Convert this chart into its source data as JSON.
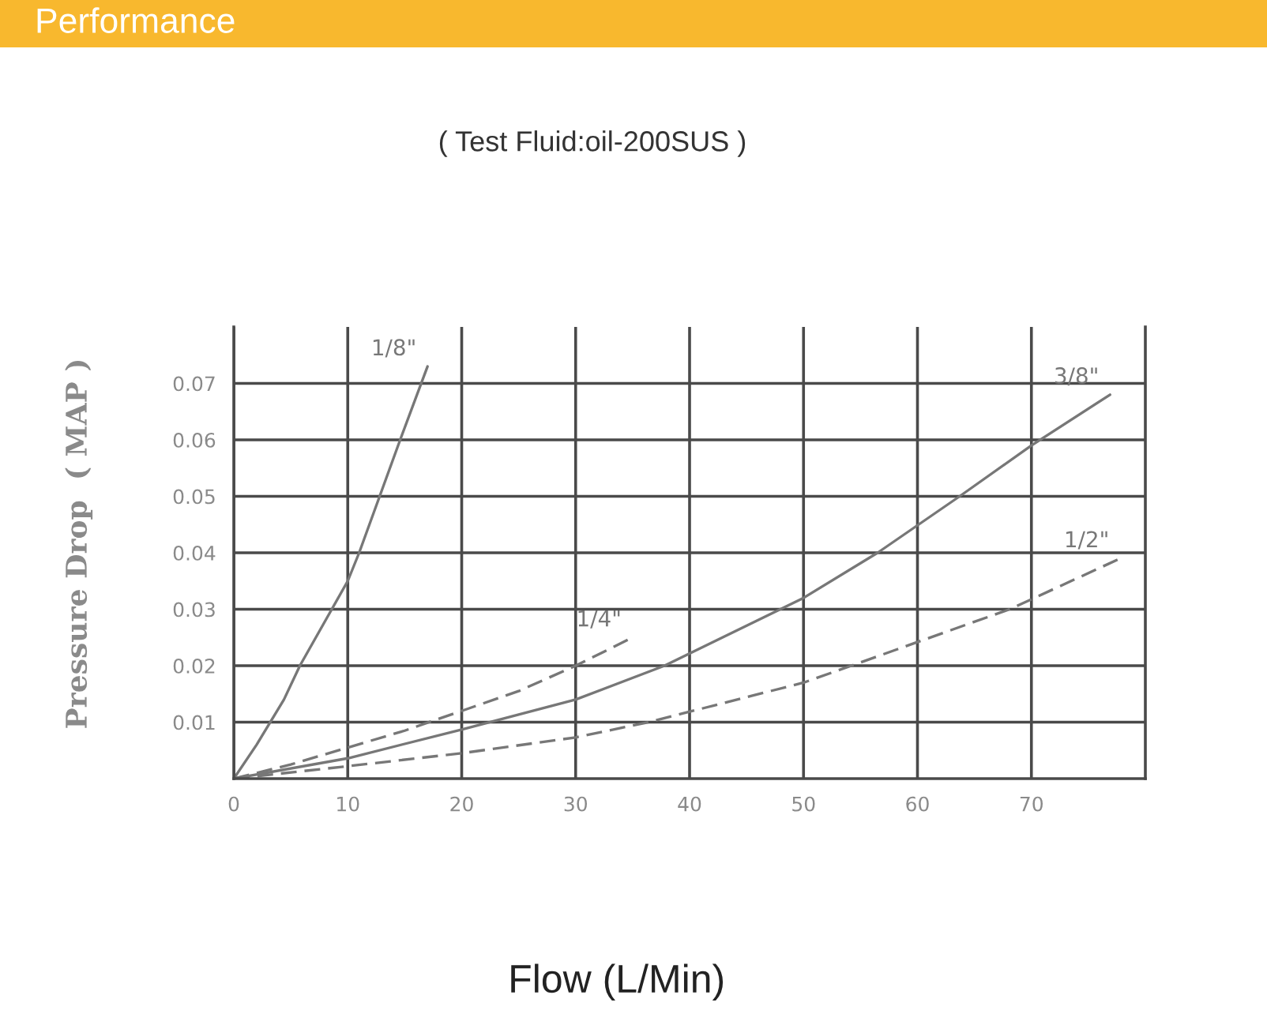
{
  "chart_data": {
    "type": "line",
    "title": "Performance",
    "subtitle": "( Test Fluid:oil-200SUS )",
    "xlabel": "Flow (L/Min)",
    "ylabel": "Pressure Drop  ( MAP )",
    "xlim": [
      0,
      80
    ],
    "ylim": [
      0,
      0.08
    ],
    "xticks": [
      0,
      10,
      20,
      30,
      40,
      50,
      60,
      70
    ],
    "yticks": [
      0.01,
      0.02,
      0.03,
      0.04,
      0.05,
      0.06,
      0.07
    ],
    "grid": true,
    "marker": "none",
    "series": [
      {
        "name": "1/8\"",
        "color": "#777777",
        "line_style": "solid",
        "x": [
          0,
          2,
          4.4,
          5.8,
          8.6,
          10,
          11,
          12.8,
          14.6,
          17
        ],
        "values": [
          0,
          0.006,
          0.014,
          0.02,
          0.03,
          0.035,
          0.04,
          0.05,
          0.06,
          0.073
        ]
      },
      {
        "name": "1/4\"",
        "color": "#777777",
        "line_style": "dashed",
        "x": [
          0,
          5,
          10,
          15,
          20,
          25,
          30,
          35
        ],
        "values": [
          0,
          0.0025,
          0.0055,
          0.0085,
          0.012,
          0.0155,
          0.02,
          0.025
        ]
      },
      {
        "name": "3/8\"",
        "color": "#777777",
        "line_style": "solid",
        "x": [
          0,
          10,
          20,
          30,
          37.8,
          50,
          56.5,
          63.7,
          70,
          76.9
        ],
        "values": [
          0,
          0.0036,
          0.0087,
          0.014,
          0.02,
          0.032,
          0.04,
          0.05,
          0.059,
          0.068
        ]
      },
      {
        "name": "1/2\"",
        "color": "#777777",
        "line_style": "dashed",
        "x": [
          0,
          10,
          20,
          30,
          36.4,
          50,
          54.2,
          64.6,
          68.1,
          77.8
        ],
        "values": [
          0,
          0.0022,
          0.0045,
          0.0073,
          0.01,
          0.017,
          0.02,
          0.0275,
          0.03,
          0.039
        ]
      }
    ]
  }
}
